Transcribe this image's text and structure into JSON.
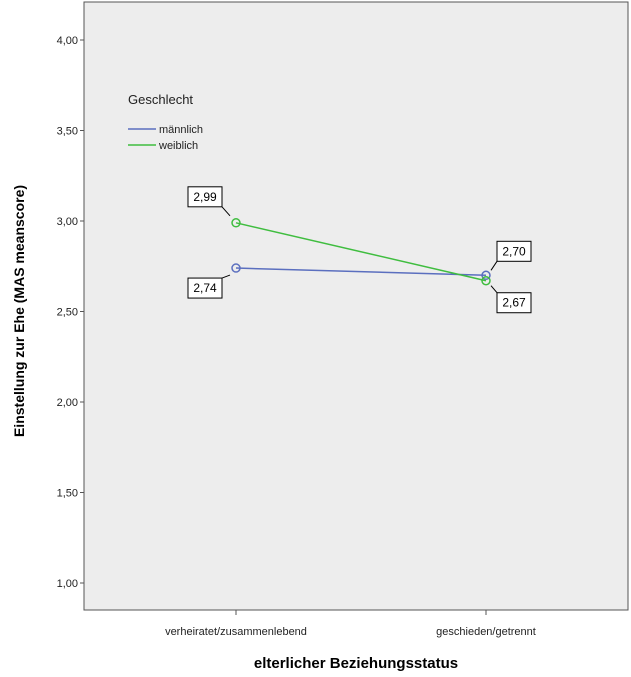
{
  "colors": {
    "plot_bg": "#ededed",
    "axis": "#555555",
    "series_male": "#5b6fbf",
    "series_female": "#3fbd3f"
  },
  "chart_data": {
    "type": "line",
    "categories": [
      "verheiratet/zusammenlebend",
      "geschieden/getrennt"
    ],
    "series": [
      {
        "name": "männlich",
        "values": [
          2.74,
          2.7
        ],
        "labels": [
          "2,74",
          "2,70"
        ]
      },
      {
        "name": "weiblich",
        "values": [
          2.99,
          2.67
        ],
        "labels": [
          "2,99",
          "2,67"
        ]
      }
    ],
    "xlabel": "elterlicher Beziehungsstatus",
    "ylabel": "Einstellung zur Ehe (MAS meanscore)",
    "ylim": [
      0.85,
      4.2
    ],
    "yticks": [
      1.0,
      1.5,
      2.0,
      2.5,
      3.0,
      3.5,
      4.0
    ],
    "ytick_labels": [
      "1,00",
      "1,50",
      "2,00",
      "2,50",
      "3,00",
      "3,50",
      "4,00"
    ],
    "legend": {
      "title": "Geschlecht",
      "position": "top-left"
    },
    "grid": false
  }
}
